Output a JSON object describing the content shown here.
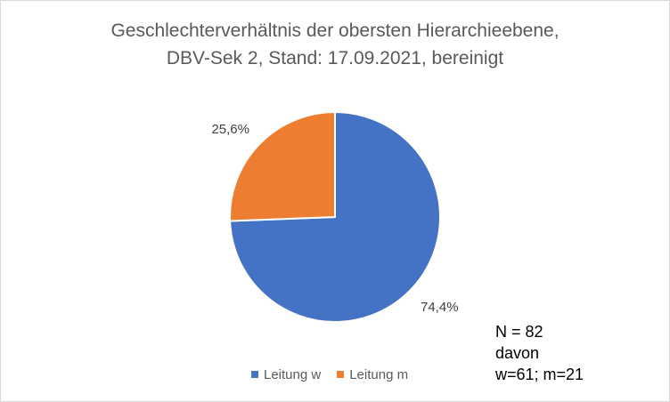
{
  "chart_data": {
    "type": "pie",
    "title": "Geschlechterverhältnis der obersten Hierarchieebene,",
    "subtitle": "DBV-Sek 2, Stand: 17.09.2021, bereinigt",
    "categories": [
      "Leitung w",
      "Leitung m"
    ],
    "values": [
      74.4,
      25.6
    ],
    "data_labels": [
      "74,4%",
      "25,6%"
    ],
    "colors": [
      "#4472c4",
      "#ed7d31"
    ],
    "legend_position": "bottom",
    "annotation": [
      "N = 82",
      "davon",
      "w=61; m=21"
    ]
  }
}
